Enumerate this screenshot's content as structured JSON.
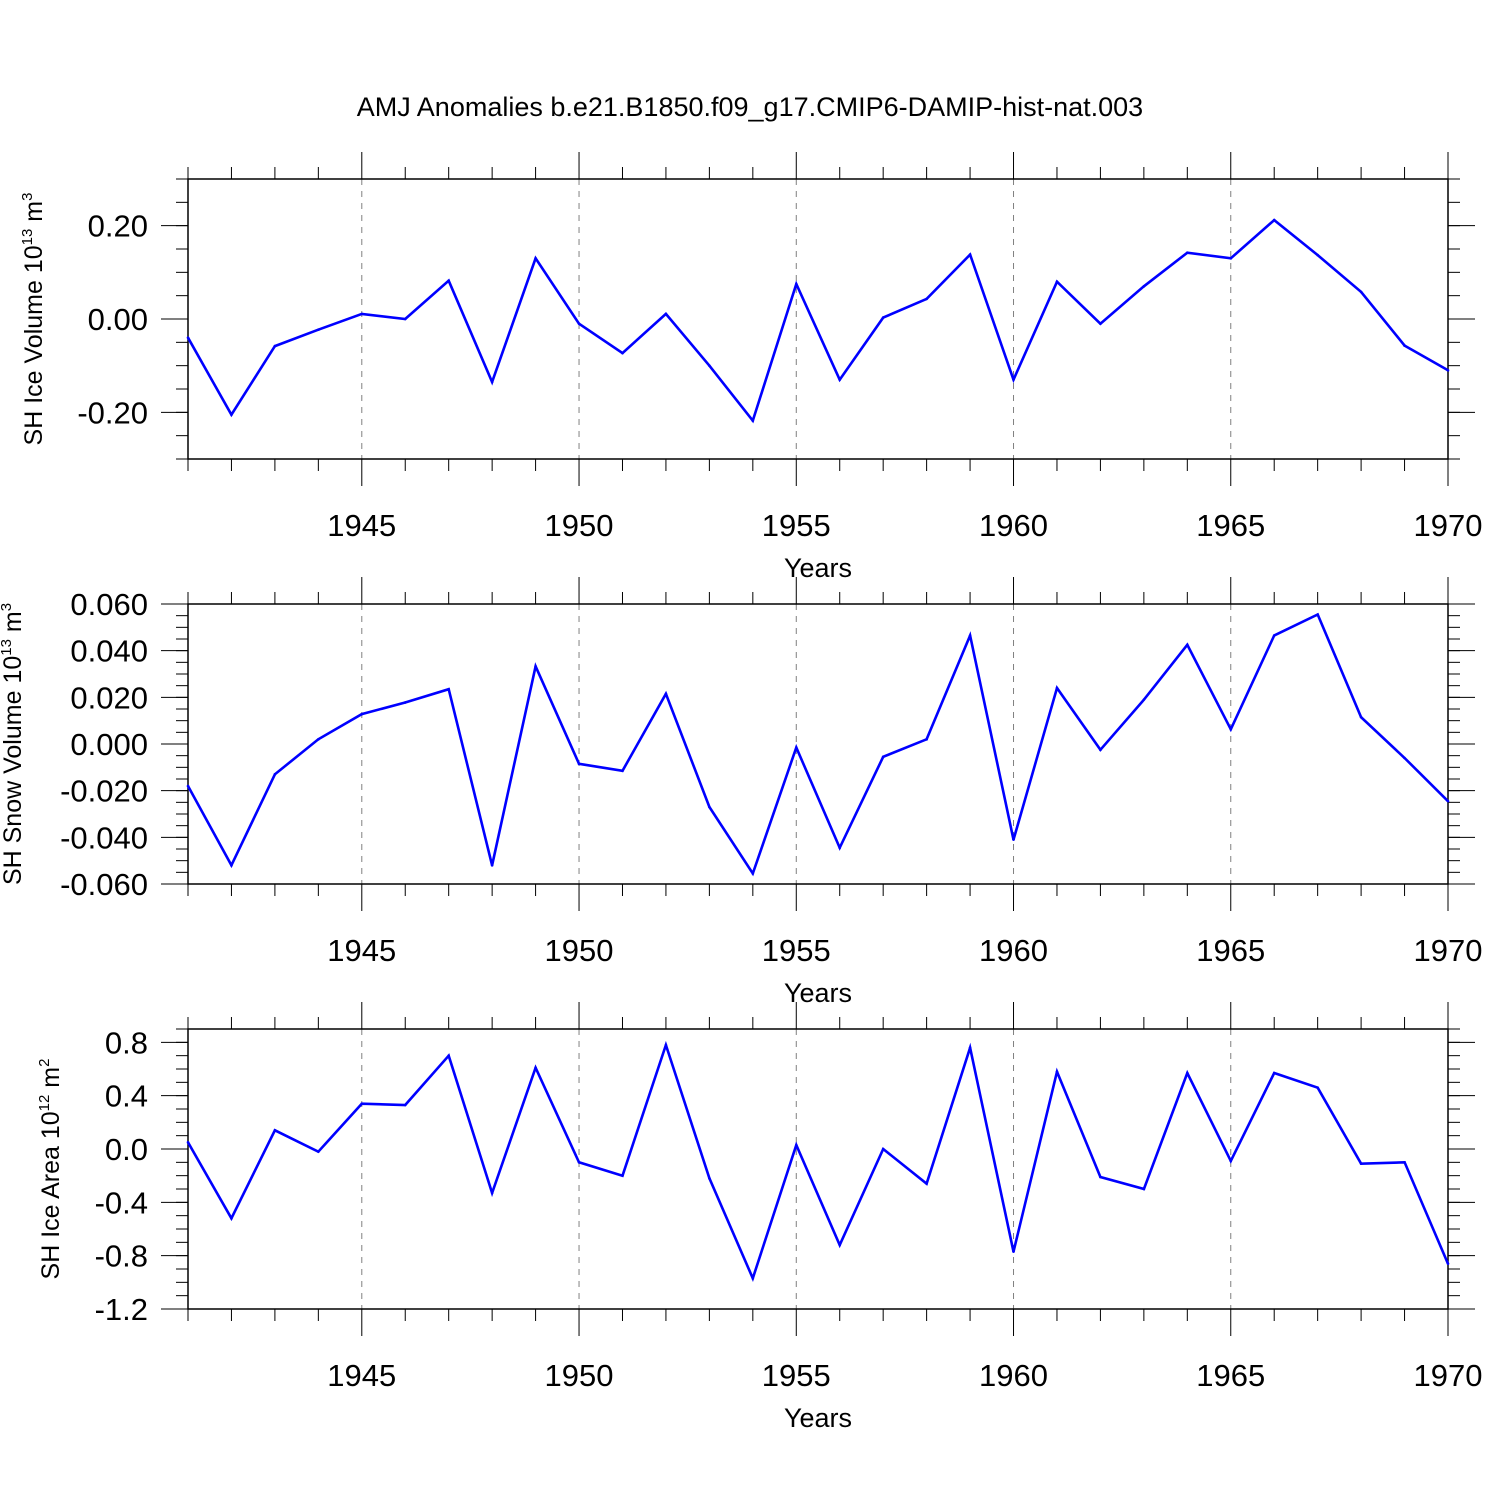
{
  "figure_title": "AMJ Anomalies b.e21.B1850.f09_g17.CMIP6-DAMIP-hist-nat.003",
  "colors": {
    "line": "#0000ff",
    "axis": "#000000",
    "grid": "#808080",
    "background": "#ffffff"
  },
  "chart_data": [
    {
      "type": "line",
      "title": "AMJ Anomalies b.e21.B1850.f09_g17.CMIP6-DAMIP-hist-nat.003",
      "xlabel": "Years",
      "ylabel": {
        "text": "SH Ice Volume 10",
        "exp1": "13",
        "unit": " m",
        "exp2": "3"
      },
      "xlim": [
        1941,
        1970
      ],
      "ylim": [
        -0.3,
        0.3
      ],
      "xticks": [
        1945,
        1950,
        1955,
        1960,
        1965,
        1970
      ],
      "yticks": [
        -0.2,
        0.0,
        0.2
      ],
      "ytick_labels": [
        "-0.20",
        "0.00",
        "0.20"
      ],
      "grid": "vertical dashed at major x ticks",
      "x": [
        1941,
        1942,
        1943,
        1944,
        1945,
        1946,
        1947,
        1948,
        1949,
        1950,
        1951,
        1952,
        1953,
        1954,
        1955,
        1956,
        1957,
        1958,
        1959,
        1960,
        1961,
        1962,
        1963,
        1964,
        1965,
        1966,
        1967,
        1968,
        1969,
        1970
      ],
      "series": [
        {
          "name": "SH Ice Volume",
          "values": [
            -0.04,
            -0.205,
            -0.058,
            -0.023,
            0.011,
            0.0,
            0.082,
            -0.135,
            0.13,
            -0.01,
            -0.073,
            0.011,
            -0.1,
            -0.218,
            0.075,
            -0.13,
            0.003,
            0.043,
            0.138,
            -0.13,
            0.08,
            -0.01,
            0.07,
            0.142,
            0.13,
            0.212,
            0.137,
            0.058,
            -0.057,
            -0.11
          ]
        }
      ]
    },
    {
      "type": "line",
      "xlabel": "Years",
      "ylabel": {
        "text": "SH Snow Volume 10",
        "exp1": "13",
        "unit": " m",
        "exp2": "3"
      },
      "xlim": [
        1941,
        1970
      ],
      "ylim": [
        -0.06,
        0.06
      ],
      "xticks": [
        1945,
        1950,
        1955,
        1960,
        1965,
        1970
      ],
      "yticks": [
        -0.06,
        -0.04,
        -0.02,
        0.0,
        0.02,
        0.04,
        0.06
      ],
      "ytick_labels": [
        "-0.060",
        "-0.040",
        "-0.020",
        "0.000",
        "0.020",
        "0.040",
        "0.060"
      ],
      "grid": "vertical dashed at major x ticks",
      "x": [
        1941,
        1942,
        1943,
        1944,
        1945,
        1946,
        1947,
        1948,
        1949,
        1950,
        1951,
        1952,
        1953,
        1954,
        1955,
        1956,
        1957,
        1958,
        1959,
        1960,
        1961,
        1962,
        1963,
        1964,
        1965,
        1966,
        1967,
        1968,
        1969,
        1970
      ],
      "series": [
        {
          "name": "SH Snow Volume",
          "values": [
            -0.018,
            -0.052,
            -0.013,
            0.002,
            0.0128,
            0.0178,
            0.0235,
            -0.052,
            0.0333,
            -0.0085,
            -0.0115,
            0.0215,
            -0.027,
            -0.0555,
            -0.0015,
            -0.0445,
            -0.0055,
            0.002,
            0.0465,
            -0.041,
            0.024,
            -0.0025,
            0.019,
            0.0425,
            0.0063,
            0.0465,
            0.0555,
            0.0115,
            -0.006,
            -0.0245
          ]
        }
      ]
    },
    {
      "type": "line",
      "xlabel": "Years",
      "ylabel": {
        "text": "SH Ice Area 10",
        "exp1": "12",
        "unit": " m",
        "exp2": "2"
      },
      "xlim": [
        1941,
        1970
      ],
      "ylim": [
        -1.2,
        0.9
      ],
      "xticks": [
        1945,
        1950,
        1955,
        1960,
        1965,
        1970
      ],
      "yticks": [
        -1.2,
        -0.8,
        -0.4,
        0.0,
        0.4,
        0.8
      ],
      "ytick_labels": [
        "-1.2",
        "-0.8",
        "-0.4",
        "0.0",
        "0.4",
        "0.8"
      ],
      "grid": "vertical dashed at major x ticks",
      "x": [
        1941,
        1942,
        1943,
        1944,
        1945,
        1946,
        1947,
        1948,
        1949,
        1950,
        1951,
        1952,
        1953,
        1954,
        1955,
        1956,
        1957,
        1958,
        1959,
        1960,
        1961,
        1962,
        1963,
        1964,
        1965,
        1966,
        1967,
        1968,
        1969,
        1970
      ],
      "series": [
        {
          "name": "SH Ice Area",
          "values": [
            0.05,
            -0.52,
            0.14,
            -0.02,
            0.34,
            0.33,
            0.7,
            -0.33,
            0.61,
            -0.1,
            -0.2,
            0.78,
            -0.22,
            -0.97,
            0.03,
            -0.72,
            0.0,
            -0.26,
            0.76,
            -0.77,
            0.58,
            -0.21,
            -0.3,
            0.57,
            -0.09,
            0.57,
            0.46,
            -0.11,
            -0.1,
            -0.86
          ]
        }
      ]
    }
  ]
}
